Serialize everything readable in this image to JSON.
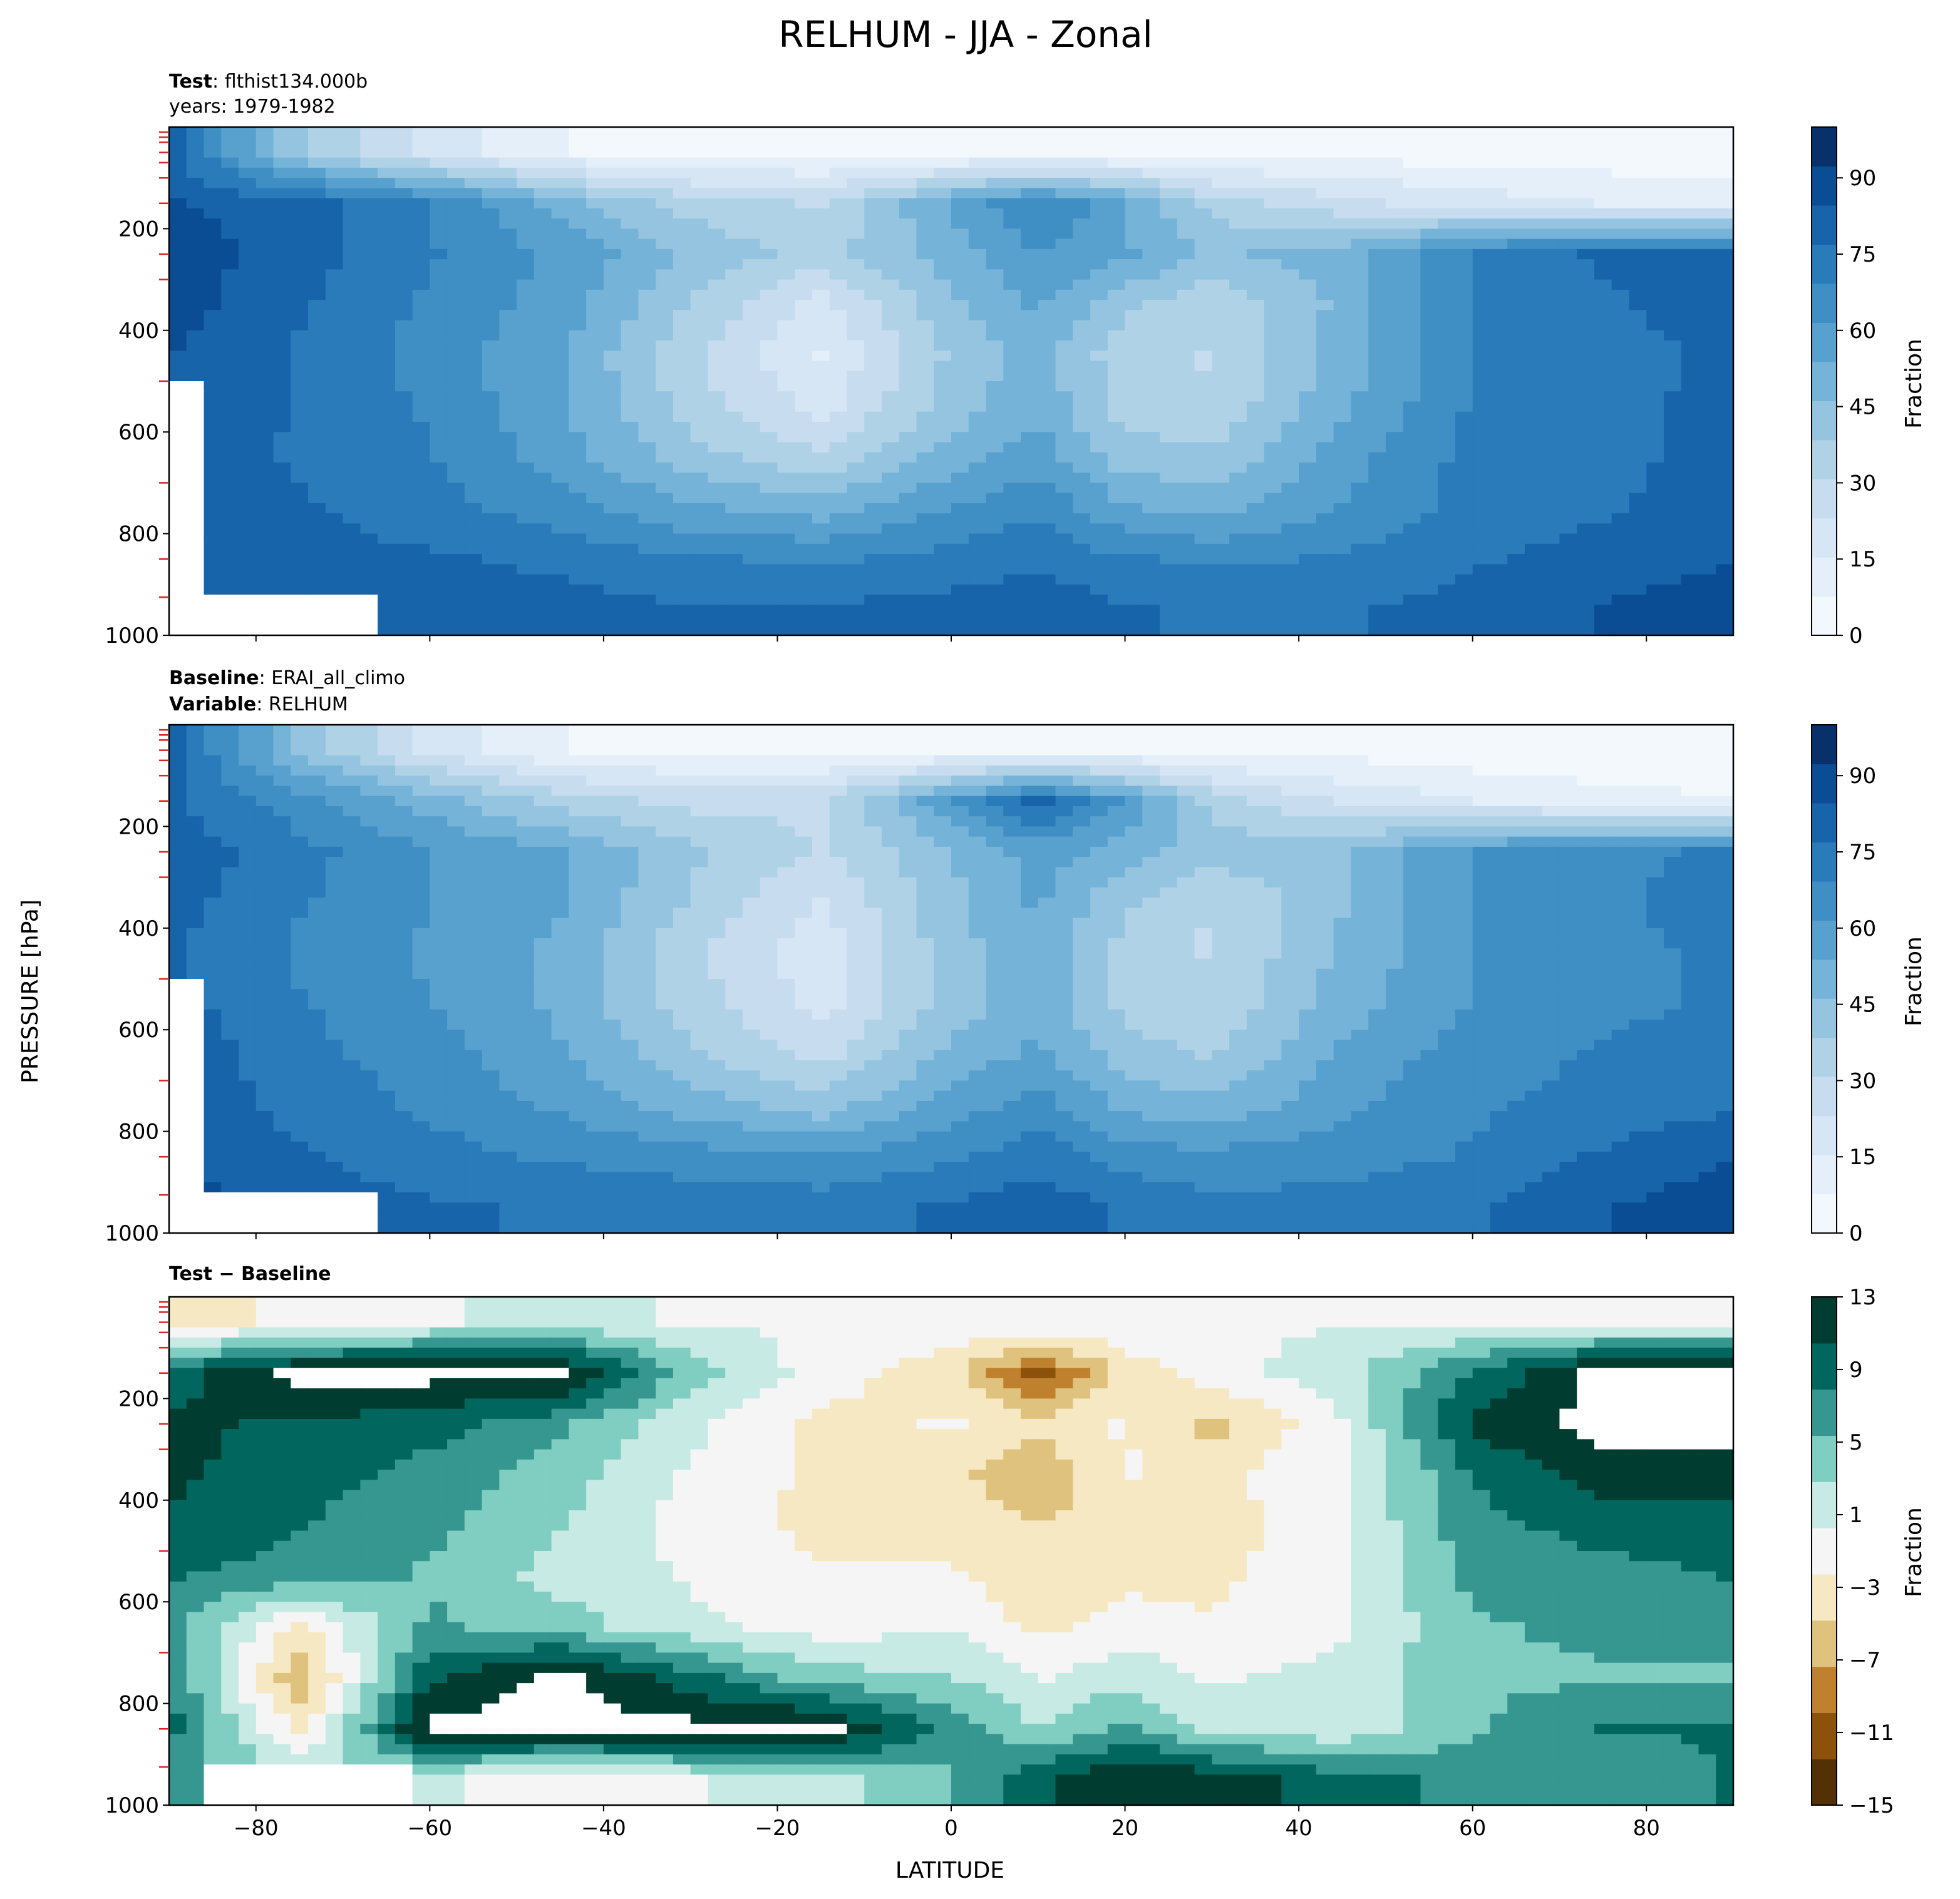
{
  "figure": {
    "title": "RELHUM - JJA - Zonal",
    "ylabel": "PRESSURE [hPa]",
    "xlabel": "LATITUDE"
  },
  "panels": [
    {
      "id": "test",
      "line1_bold": "Test",
      "line1_sep": ": ",
      "line1_text": "flthist134.000b",
      "line2": "years: 1979-1982",
      "colorbar_label": "Fraction"
    },
    {
      "id": "baseline",
      "line1_bold": "Baseline",
      "line1_sep": ": ",
      "line1_text": "ERAI_all_climo",
      "line2_bold": "Variable",
      "line2_sep": ": ",
      "line2_text": "RELHUM",
      "colorbar_label": "Fraction"
    },
    {
      "id": "diff",
      "line1_bold": "Test − Baseline",
      "colorbar_label": "Fraction"
    }
  ],
  "colors": {
    "blues": [
      "#f3f8fd",
      "#e5eff9",
      "#d6e6f4",
      "#c7dcef",
      "#b0d2e7",
      "#94c4df",
      "#75b4d8",
      "#58a1cf",
      "#3f8fc5",
      "#2a7bba",
      "#1864aa",
      "#0a4d95",
      "#08306b"
    ],
    "brbg": [
      "#543005",
      "#8c510a",
      "#bf812d",
      "#dfc27d",
      "#f6e8c3",
      "#f5f5f5",
      "#c7eae5",
      "#80cdc1",
      "#35978f",
      "#01665e",
      "#003c30"
    ]
  },
  "chart_data": [
    {
      "type": "contourf",
      "panel": "Test",
      "x_label": "LATITUDE",
      "y_label": "PRESSURE [hPa]",
      "xlim": [
        -90,
        90
      ],
      "ylim": [
        1000,
        0
      ],
      "x_ticks": [
        -80,
        -60,
        -40,
        -20,
        0,
        20,
        40,
        60,
        80
      ],
      "y_ticks": [
        200,
        400,
        600,
        800,
        1000
      ],
      "colorbar": {
        "label": "Fraction",
        "range": [
          0,
          100
        ],
        "ticks": [
          0,
          15,
          30,
          45,
          60,
          75,
          90
        ]
      },
      "lat": [
        -90,
        -75,
        -60,
        -45,
        -30,
        -15,
        0,
        10,
        20,
        30,
        45,
        60,
        75,
        90
      ],
      "lev": [
        50,
        150,
        250,
        350,
        450,
        550,
        650,
        750,
        850,
        950
      ],
      "values": [
        [
          80,
          40,
          20,
          8,
          5,
          5,
          5,
          5,
          5,
          5,
          5,
          3,
          3,
          3
        ],
        [
          85,
          80,
          70,
          50,
          35,
          30,
          55,
          70,
          55,
          35,
          25,
          20,
          15,
          12
        ],
        [
          90,
          80,
          70,
          60,
          45,
          35,
          50,
          62,
          55,
          45,
          50,
          70,
          78,
          80
        ],
        [
          88,
          78,
          68,
          58,
          38,
          20,
          45,
          55,
          40,
          32,
          48,
          70,
          76,
          80
        ],
        [
          85,
          76,
          66,
          55,
          32,
          15,
          40,
          50,
          33,
          30,
          50,
          70,
          75,
          78
        ],
        [
          84,
          76,
          68,
          55,
          35,
          20,
          42,
          52,
          35,
          32,
          52,
          70,
          76,
          78
        ],
        [
          82,
          76,
          70,
          58,
          42,
          32,
          50,
          58,
          42,
          40,
          58,
          72,
          76,
          78
        ],
        [
          84,
          78,
          72,
          65,
          55,
          50,
          62,
          68,
          55,
          50,
          62,
          72,
          76,
          80
        ],
        [
          86,
          80,
          78,
          75,
          70,
          68,
          72,
          75,
          70,
          68,
          70,
          76,
          80,
          84
        ],
        [
          86,
          82,
          80,
          80,
          78,
          78,
          80,
          82,
          78,
          75,
          76,
          80,
          85,
          90
        ]
      ]
    },
    {
      "type": "contourf",
      "panel": "Baseline",
      "x_label": "LATITUDE",
      "y_label": "PRESSURE [hPa]",
      "xlim": [
        -90,
        90
      ],
      "ylim": [
        1000,
        0
      ],
      "x_ticks": [
        -80,
        -60,
        -40,
        -20,
        0,
        20,
        40,
        60,
        80
      ],
      "y_ticks": [
        200,
        400,
        600,
        800,
        1000
      ],
      "colorbar": {
        "label": "Fraction",
        "range": [
          0,
          100
        ],
        "ticks": [
          0,
          15,
          30,
          45,
          60,
          75,
          90
        ]
      },
      "lat": [
        -90,
        -75,
        -60,
        -45,
        -30,
        -15,
        0,
        10,
        20,
        30,
        45,
        60,
        75,
        90
      ],
      "lev": [
        50,
        150,
        250,
        350,
        450,
        550,
        650,
        750,
        850,
        950
      ],
      "values": [
        [
          80,
          45,
          20,
          8,
          5,
          5,
          5,
          5,
          5,
          5,
          5,
          3,
          3,
          3
        ],
        [
          78,
          65,
          50,
          35,
          28,
          30,
          60,
          80,
          60,
          35,
          22,
          15,
          10,
          8
        ],
        [
          82,
          72,
          62,
          55,
          40,
          30,
          45,
          58,
          50,
          42,
          45,
          62,
          68,
          70
        ],
        [
          80,
          70,
          62,
          55,
          38,
          22,
          45,
          55,
          40,
          30,
          45,
          62,
          68,
          72
        ],
        [
          78,
          68,
          60,
          52,
          32,
          18,
          42,
          52,
          35,
          30,
          48,
          62,
          68,
          70
        ],
        [
          80,
          70,
          62,
          52,
          35,
          20,
          42,
          52,
          36,
          32,
          50,
          62,
          68,
          70
        ],
        [
          82,
          72,
          65,
          55,
          40,
          28,
          48,
          56,
          42,
          38,
          55,
          66,
          70,
          72
        ],
        [
          84,
          74,
          68,
          60,
          50,
          42,
          58,
          65,
          52,
          48,
          60,
          68,
          72,
          76
        ],
        [
          86,
          78,
          72,
          68,
          65,
          62,
          68,
          74,
          66,
          64,
          66,
          70,
          78,
          84
        ],
        [
          88,
          82,
          78,
          76,
          75,
          74,
          78,
          82,
          76,
          72,
          72,
          76,
          84,
          90
        ]
      ]
    },
    {
      "type": "contourf",
      "panel": "Test − Baseline",
      "x_label": "LATITUDE",
      "y_label": "PRESSURE [hPa]",
      "xlim": [
        -90,
        90
      ],
      "ylim": [
        1000,
        0
      ],
      "x_ticks": [
        -80,
        -60,
        -40,
        -20,
        0,
        20,
        40,
        60,
        80
      ],
      "y_ticks": [
        200,
        400,
        600,
        800,
        1000
      ],
      "colorbar": {
        "label": "Fraction",
        "range": [
          -15,
          13
        ],
        "ticks": [
          13,
          9,
          5,
          1,
          -3,
          -7,
          -11,
          -15
        ]
      },
      "lat": [
        -90,
        -75,
        -60,
        -45,
        -30,
        -15,
        0,
        10,
        20,
        30,
        45,
        60,
        75,
        90
      ],
      "lev": [
        50,
        150,
        250,
        350,
        450,
        550,
        650,
        750,
        850,
        950
      ],
      "values": [
        [
          -3,
          -2,
          0,
          1,
          0,
          0,
          0,
          0,
          0,
          0,
          0,
          0,
          0,
          0
        ],
        [
          9,
          14,
          14,
          14,
          4,
          -1,
          -4,
          -11,
          -4,
          -1,
          2,
          8,
          14,
          14
        ],
        [
          11,
          10,
          9,
          6,
          1,
          -3,
          -2,
          -4,
          -2,
          -6,
          0,
          11,
          14,
          14
        ],
        [
          11,
          9,
          7,
          4,
          0,
          -3,
          -4,
          -7,
          -2,
          -3,
          0,
          8,
          12,
          12
        ],
        [
          10,
          8,
          6,
          3,
          -1,
          -3,
          -3,
          -5,
          -3,
          -4,
          0,
          7,
          9,
          9
        ],
        [
          8,
          7,
          5,
          2,
          0,
          -2,
          -2,
          -4,
          -3,
          -3,
          0,
          6,
          7,
          8
        ],
        [
          6,
          -3,
          6,
          4,
          1,
          -1,
          0,
          -3,
          -1,
          -2,
          0,
          5,
          6,
          6
        ],
        [
          8,
          -7,
          10,
          14,
          9,
          4,
          3,
          0,
          2,
          0,
          1,
          5,
          5,
          5
        ],
        [
          9,
          -3,
          14,
          14,
          14,
          14,
          7,
          3,
          6,
          2,
          1,
          5,
          8,
          8
        ],
        [
          6,
          4,
          1,
          -2,
          0,
          2,
          5,
          10,
          13,
          12,
          9,
          7,
          7,
          8
        ]
      ]
    }
  ]
}
